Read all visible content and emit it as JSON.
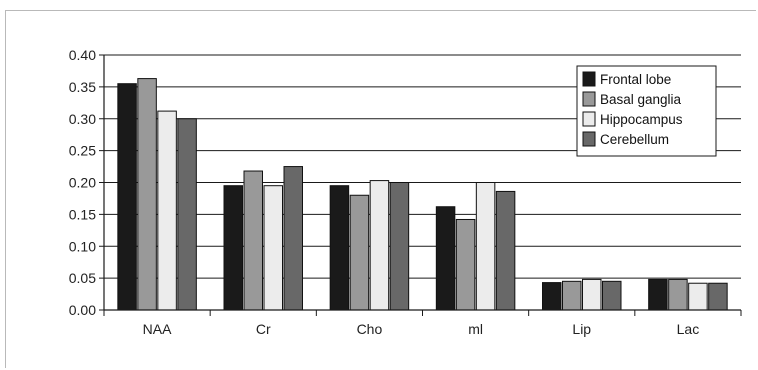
{
  "chart_data": {
    "type": "bar",
    "title": "",
    "xlabel": "",
    "ylabel": "",
    "categories": [
      "NAA",
      "Cr",
      "Cho",
      "ml",
      "Lip",
      "Lac"
    ],
    "ylim": [
      0,
      0.4
    ],
    "yticks": [
      "0.00",
      "0.05",
      "0.10",
      "0.15",
      "0.20",
      "0.25",
      "0.30",
      "0.35",
      "0.40"
    ],
    "grid": true,
    "legend_position": "top-right",
    "series": [
      {
        "name": "Frontal lobe",
        "color": "#1a1a1a",
        "values": [
          0.355,
          0.195,
          0.195,
          0.162,
          0.043,
          0.048
        ]
      },
      {
        "name": "Basal ganglia",
        "color": "#999999",
        "values": [
          0.363,
          0.218,
          0.18,
          0.142,
          0.045,
          0.048
        ]
      },
      {
        "name": "Hippocampus",
        "color": "#ececec",
        "values": [
          0.312,
          0.195,
          0.203,
          0.2,
          0.048,
          0.042
        ]
      },
      {
        "name": "Cerebellum",
        "color": "#686868",
        "values": [
          0.3,
          0.225,
          0.2,
          0.186,
          0.045,
          0.042
        ]
      }
    ]
  }
}
